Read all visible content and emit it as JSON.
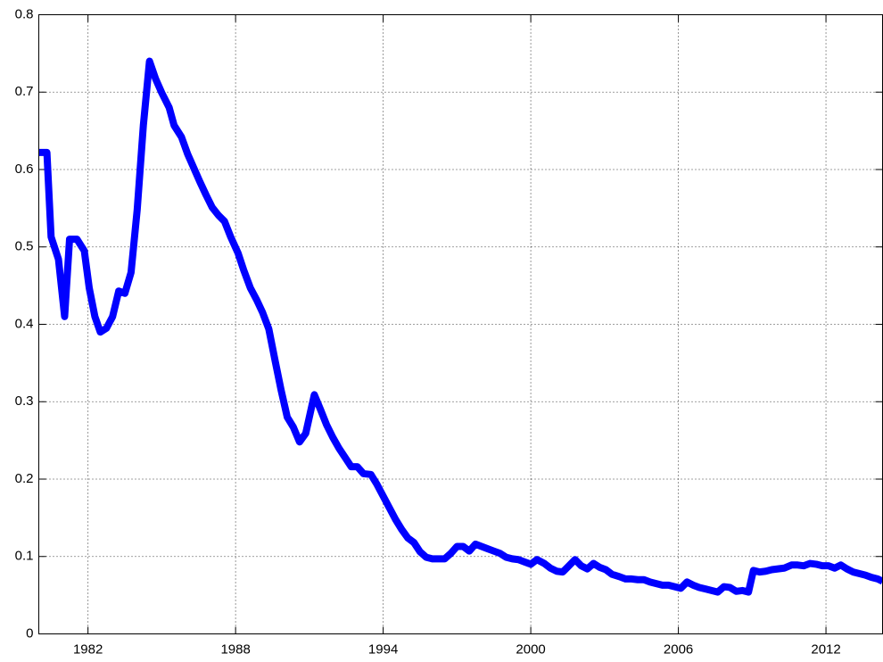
{
  "chart_data": {
    "type": "line",
    "color": "#0000ff",
    "grid": true,
    "x": [
      1980.0,
      1980.33,
      1980.5,
      1980.8,
      1981.05,
      1981.25,
      1981.55,
      1981.85,
      1982.05,
      1982.28,
      1982.5,
      1982.75,
      1983.0,
      1983.25,
      1983.5,
      1983.75,
      1984.0,
      1984.25,
      1984.5,
      1984.75,
      1985.0,
      1985.3,
      1985.5,
      1985.8,
      1986.05,
      1986.3,
      1986.55,
      1986.8,
      1987.05,
      1987.3,
      1987.55,
      1987.8,
      1988.1,
      1988.33,
      1988.6,
      1988.85,
      1989.1,
      1989.35,
      1989.6,
      1989.85,
      1990.1,
      1990.35,
      1990.6,
      1990.85,
      1991.2,
      1991.45,
      1991.7,
      1991.95,
      1992.2,
      1992.45,
      1992.7,
      1992.95,
      1993.2,
      1993.5,
      1993.75,
      1994.0,
      1994.25,
      1994.5,
      1994.75,
      1995.0,
      1995.25,
      1995.5,
      1995.75,
      1996.0,
      1996.25,
      1996.5,
      1996.75,
      1997.0,
      1997.25,
      1997.5,
      1997.75,
      1998.0,
      1998.25,
      1998.5,
      1998.75,
      1999.0,
      1999.25,
      1999.5,
      1999.75,
      2000.0,
      2000.25,
      2000.55,
      2000.8,
      2001.05,
      2001.3,
      2001.55,
      2001.8,
      2002.05,
      2002.3,
      2002.55,
      2002.8,
      2003.05,
      2003.3,
      2003.6,
      2003.85,
      2004.1,
      2004.35,
      2004.6,
      2004.85,
      2005.1,
      2005.35,
      2005.6,
      2005.85,
      2006.1,
      2006.35,
      2006.6,
      2006.85,
      2007.1,
      2007.35,
      2007.6,
      2007.85,
      2008.1,
      2008.35,
      2008.6,
      2008.85,
      2009.05,
      2009.3,
      2009.55,
      2009.8,
      2010.05,
      2010.3,
      2010.6,
      2010.85,
      2011.1,
      2011.35,
      2011.6,
      2011.85,
      2012.1,
      2012.35,
      2012.6,
      2012.85,
      2013.1,
      2013.35,
      2013.6,
      2013.85,
      2014.1,
      2014.3
    ],
    "values": [
      0.622,
      0.622,
      0.513,
      0.484,
      0.41,
      0.51,
      0.51,
      0.495,
      0.447,
      0.41,
      0.39,
      0.395,
      0.41,
      0.443,
      0.44,
      0.467,
      0.548,
      0.657,
      0.74,
      0.717,
      0.699,
      0.68,
      0.657,
      0.642,
      0.62,
      0.602,
      0.584,
      0.567,
      0.551,
      0.541,
      0.533,
      0.513,
      0.492,
      0.47,
      0.447,
      0.432,
      0.415,
      0.394,
      0.354,
      0.315,
      0.28,
      0.267,
      0.248,
      0.259,
      0.309,
      0.29,
      0.27,
      0.254,
      0.24,
      0.228,
      0.216,
      0.216,
      0.207,
      0.206,
      0.193,
      0.178,
      0.163,
      0.148,
      0.135,
      0.124,
      0.118,
      0.106,
      0.099,
      0.097,
      0.097,
      0.097,
      0.104,
      0.113,
      0.113,
      0.107,
      0.116,
      0.113,
      0.11,
      0.107,
      0.104,
      0.099,
      0.097,
      0.096,
      0.093,
      0.09,
      0.096,
      0.091,
      0.085,
      0.081,
      0.08,
      0.088,
      0.096,
      0.088,
      0.084,
      0.091,
      0.086,
      0.083,
      0.077,
      0.074,
      0.071,
      0.071,
      0.07,
      0.07,
      0.067,
      0.065,
      0.063,
      0.063,
      0.061,
      0.059,
      0.067,
      0.063,
      0.06,
      0.058,
      0.056,
      0.054,
      0.061,
      0.06,
      0.055,
      0.056,
      0.054,
      0.082,
      0.08,
      0.081,
      0.083,
      0.084,
      0.085,
      0.089,
      0.089,
      0.088,
      0.091,
      0.09,
      0.088,
      0.088,
      0.085,
      0.089,
      0.084,
      0.08,
      0.078,
      0.076,
      0.073,
      0.071,
      0.068
    ],
    "xlim": [
      1980,
      2014.3
    ],
    "xticks": [
      1982,
      1988,
      1994,
      2000,
      2006,
      2012
    ],
    "ylim": [
      0,
      0.8
    ],
    "yticks": [
      0,
      0.1,
      0.2,
      0.3,
      0.4,
      0.5,
      0.6,
      0.7,
      0.8
    ]
  }
}
